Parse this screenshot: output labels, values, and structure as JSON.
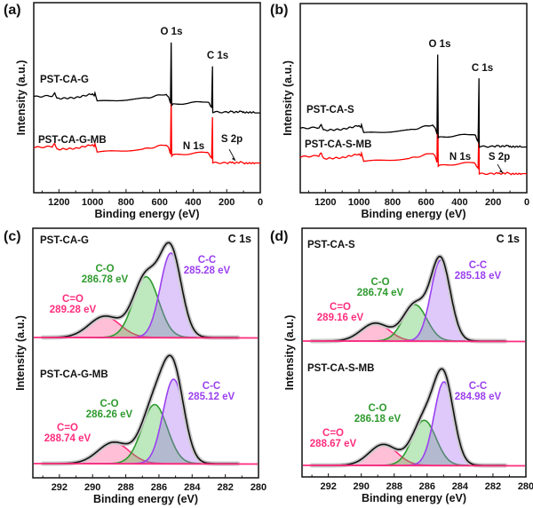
{
  "chart_data": [
    {
      "panel": "(a)",
      "type": "line",
      "xlabel": "Binding energy (eV)",
      "ylabel": "Intensity (a.u.)",
      "xlim": [
        1350,
        0
      ],
      "x_reversed": true,
      "ylim": [
        0,
        100
      ],
      "xticks": [
        1200,
        1000,
        800,
        600,
        400,
        200,
        0
      ],
      "grid": false,
      "peak_labels": [
        {
          "text": "O 1s",
          "energy": 531
        },
        {
          "text": "C 1s",
          "energy": 285
        },
        {
          "text": "N 1s",
          "energy": 400
        },
        {
          "text": "S 2p",
          "energy": 165
        }
      ],
      "series": [
        {
          "name": "PST-CA-G",
          "color": "#000000",
          "points": [
            [
              1350,
              50.5
            ],
            [
              1240,
              51
            ],
            [
              1225,
              52.5
            ],
            [
              1212,
              49.5
            ],
            [
              1100,
              50
            ],
            [
              1000,
              52
            ],
            [
              990,
              51
            ],
            [
              985,
              52.5
            ],
            [
              972,
              48
            ],
            [
              700,
              49.5
            ],
            [
              560,
              52
            ],
            [
              545,
              50
            ],
            [
              535,
              47
            ],
            [
              531,
              79
            ],
            [
              528,
              46
            ],
            [
              520,
              46.5
            ],
            [
              320,
              48
            ],
            [
              305,
              47
            ],
            [
              290,
              45
            ],
            [
              285,
              66.5
            ],
            [
              283,
              42.5
            ],
            [
              200,
              42.3
            ],
            [
              165,
              42.8
            ],
            [
              160,
              42.3
            ],
            [
              110,
              42.8
            ],
            [
              105,
              42.2
            ],
            [
              30,
              42.3
            ],
            [
              0,
              42
            ]
          ]
        },
        {
          "name": "PST-CA-G-MB",
          "color": "#ff0000",
          "points": [
            [
              1350,
              23.8
            ],
            [
              1240,
              24.3
            ],
            [
              1225,
              25.8
            ],
            [
              1212,
              22.8
            ],
            [
              1100,
              23.3
            ],
            [
              1000,
              25.3
            ],
            [
              990,
              24.3
            ],
            [
              985,
              25.8
            ],
            [
              972,
              21.3
            ],
            [
              700,
              22.8
            ],
            [
              560,
              25.3
            ],
            [
              545,
              23.3
            ],
            [
              535,
              20.3
            ],
            [
              531,
              51.4
            ],
            [
              528,
              19.3
            ],
            [
              520,
              19.8
            ],
            [
              320,
              21.3
            ],
            [
              305,
              20.3
            ],
            [
              290,
              18.3
            ],
            [
              285,
              39.7
            ],
            [
              283,
              15.8
            ],
            [
              200,
              15.6
            ],
            [
              165,
              16.1
            ],
            [
              160,
              15.6
            ],
            [
              110,
              16.1
            ],
            [
              105,
              15.5
            ],
            [
              30,
              15.6
            ],
            [
              0,
              15.3
            ]
          ]
        }
      ]
    },
    {
      "panel": "(b)",
      "type": "line",
      "xlabel": "Binding energy (eV)",
      "ylabel": "Intensity (a.u.)",
      "xlim": [
        1350,
        0
      ],
      "x_reversed": true,
      "ylim": [
        0,
        100
      ],
      "xticks": [
        1200,
        1000,
        800,
        600,
        400,
        200,
        0
      ],
      "grid": false,
      "peak_labels": [
        {
          "text": "O 1s",
          "energy": 531
        },
        {
          "text": "C 1s",
          "energy": 285
        },
        {
          "text": "N 1s",
          "energy": 400
        },
        {
          "text": "S 2p",
          "energy": 165
        }
      ],
      "series": [
        {
          "name": "PST-CA-S",
          "color": "#000000",
          "points": [
            [
              1350,
              34
            ],
            [
              1240,
              34.5
            ],
            [
              1225,
              36
            ],
            [
              1212,
              33
            ],
            [
              1100,
              33.5
            ],
            [
              1000,
              35.5
            ],
            [
              990,
              34.5
            ],
            [
              985,
              36
            ],
            [
              972,
              31.5
            ],
            [
              700,
              33
            ],
            [
              560,
              36
            ],
            [
              545,
              34
            ],
            [
              535,
              31
            ],
            [
              531,
              73
            ],
            [
              528,
              29
            ],
            [
              520,
              29.3
            ],
            [
              320,
              31
            ],
            [
              305,
              30
            ],
            [
              290,
              27
            ],
            [
              285,
              60.5
            ],
            [
              283,
              24.4
            ],
            [
              200,
              24.4
            ],
            [
              165,
              24.9
            ],
            [
              160,
              24.4
            ],
            [
              110,
              24.9
            ],
            [
              105,
              24.3
            ],
            [
              30,
              24.4
            ],
            [
              0,
              24.2
            ]
          ]
        },
        {
          "name": "PST-CA-S-MB",
          "color": "#ff0000",
          "points": [
            [
              1350,
              19
            ],
            [
              1240,
              19.5
            ],
            [
              1225,
              21
            ],
            [
              1212,
              18
            ],
            [
              1100,
              18.5
            ],
            [
              1000,
              20.5
            ],
            [
              990,
              19.5
            ],
            [
              985,
              21
            ],
            [
              972,
              16.5
            ],
            [
              700,
              18
            ],
            [
              560,
              21
            ],
            [
              545,
              19
            ],
            [
              535,
              16
            ],
            [
              531,
              52.5
            ],
            [
              528,
              14
            ],
            [
              520,
              14.3
            ],
            [
              320,
              16
            ],
            [
              305,
              15
            ],
            [
              290,
              13
            ],
            [
              285,
              40
            ],
            [
              283,
              10
            ],
            [
              200,
              10
            ],
            [
              165,
              10.5
            ],
            [
              160,
              10
            ],
            [
              110,
              10.5
            ],
            [
              105,
              9.9
            ],
            [
              30,
              10
            ],
            [
              0,
              9.8
            ]
          ]
        }
      ]
    },
    {
      "panel": "(c)",
      "type": "area",
      "title": "C 1s",
      "xlabel": "Binding energy (eV)",
      "ylabel": "Intensity (a.u.)",
      "xlim": [
        293.6,
        280
      ],
      "x_reversed": true,
      "xticks": [
        292,
        290,
        288,
        286,
        284,
        282,
        280
      ],
      "grid": false,
      "spectra": [
        {
          "sample": "PST-CA-G",
          "components": [
            {
              "name": "C=O",
              "center": 289.28,
              "label": "289.28 eV",
              "height": 0.25,
              "fwhm": 2.2,
              "color": "#ff2d7e"
            },
            {
              "name": "C-O",
              "center": 286.78,
              "label": "286.78 eV",
              "height": 0.72,
              "fwhm": 1.8,
              "color": "#2e9a2e"
            },
            {
              "name": "C-C",
              "center": 285.28,
              "label": "285.28 eV",
              "height": 1.0,
              "fwhm": 1.5,
              "color": "#9b40f0"
            }
          ]
        },
        {
          "sample": "PST-CA-G-MB",
          "components": [
            {
              "name": "C=O",
              "center": 288.74,
              "label": "288.74 eV",
              "height": 0.25,
              "fwhm": 2.2,
              "color": "#ff2d7e"
            },
            {
              "name": "C-O",
              "center": 286.26,
              "label": "286.26 eV",
              "height": 0.7,
              "fwhm": 1.8,
              "color": "#2e9a2e"
            },
            {
              "name": "C-C",
              "center": 285.12,
              "label": "285.12 eV",
              "height": 1.0,
              "fwhm": 1.5,
              "color": "#9b40f0"
            }
          ]
        }
      ]
    },
    {
      "panel": "(d)",
      "type": "area",
      "title": "C 1s",
      "xlabel": "Binding energy (eV)",
      "ylabel": "Intensity (a.u.)",
      "xlim": [
        293.6,
        280
      ],
      "x_reversed": true,
      "xticks": [
        292,
        290,
        288,
        286,
        284,
        282,
        280
      ],
      "grid": false,
      "spectra": [
        {
          "sample": "PST-CA-S",
          "components": [
            {
              "name": "C=O",
              "center": 289.16,
              "label": "289.16 eV",
              "height": 0.22,
              "fwhm": 2.0,
              "color": "#ff2d7e"
            },
            {
              "name": "C-O",
              "center": 286.74,
              "label": "286.74 eV",
              "height": 0.45,
              "fwhm": 1.7,
              "color": "#2e9a2e"
            },
            {
              "name": "C-C",
              "center": 285.18,
              "label": "285.18 eV",
              "height": 1.0,
              "fwhm": 1.4,
              "color": "#9b40f0"
            }
          ]
        },
        {
          "sample": "PST-CA-S-MB",
          "components": [
            {
              "name": "C=O",
              "center": 288.67,
              "label": "288.67 eV",
              "height": 0.25,
              "fwhm": 2.0,
              "color": "#ff2d7e"
            },
            {
              "name": "C-O",
              "center": 286.18,
              "label": "286.18 eV",
              "height": 0.54,
              "fwhm": 1.7,
              "color": "#2e9a2e"
            },
            {
              "name": "C-C",
              "center": 284.98,
              "label": "284.98 eV",
              "height": 1.0,
              "fwhm": 1.4,
              "color": "#9b40f0"
            }
          ]
        }
      ]
    }
  ]
}
